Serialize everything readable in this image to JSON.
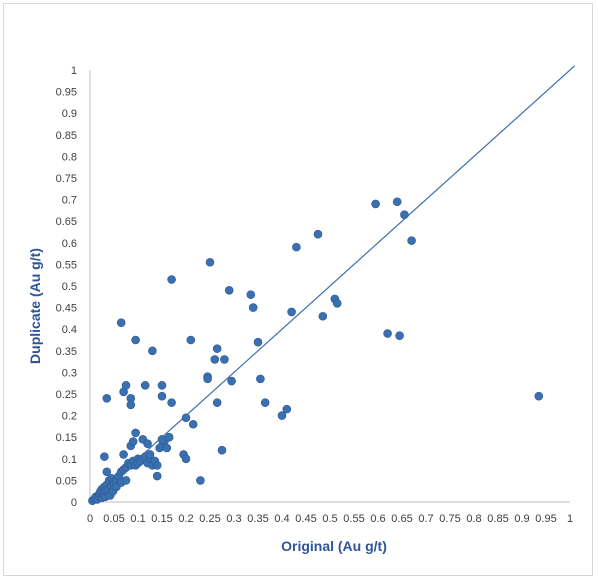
{
  "chart_data": {
    "type": "scatter",
    "title": "",
    "xlabel": "Original (Au g/t)",
    "ylabel": "Duplicate (Au g/t)",
    "xlim": [
      0,
      1
    ],
    "ylim": [
      0,
      1
    ],
    "x_ticks": [
      "0",
      "0.05",
      "0.1",
      "0.15",
      "0.2",
      "0.25",
      "0.3",
      "0.35",
      "0.4",
      "0.45",
      "0.5",
      "0.55",
      "0.6",
      "0.65",
      "0.7",
      "0.75",
      "0.8",
      "0.85",
      "0.9",
      "0.95",
      "1"
    ],
    "y_ticks": [
      "0",
      "0.05",
      "0.1",
      "0.15",
      "0.2",
      "0.25",
      "0.3",
      "0.35",
      "0.4",
      "0.45",
      "0.5",
      "0.55",
      "0.6",
      "0.65",
      "0.7",
      "0.75",
      "0.8",
      "0.85",
      "0.9",
      "0.95",
      "1"
    ],
    "grid": false,
    "legend": "none",
    "marker_color": "#3a6fb0",
    "line_color": "#3a6fb0",
    "reference_line": {
      "x": [
        0,
        1.01
      ],
      "y": [
        0,
        1.01
      ]
    },
    "points": [
      [
        0.005,
        0.003
      ],
      [
        0.01,
        0.008
      ],
      [
        0.012,
        0.012
      ],
      [
        0.015,
        0.006
      ],
      [
        0.018,
        0.015
      ],
      [
        0.02,
        0.02
      ],
      [
        0.022,
        0.025
      ],
      [
        0.025,
        0.01
      ],
      [
        0.025,
        0.03
      ],
      [
        0.028,
        0.018
      ],
      [
        0.03,
        0.035
      ],
      [
        0.03,
        0.022
      ],
      [
        0.032,
        0.012
      ],
      [
        0.035,
        0.04
      ],
      [
        0.035,
        0.028
      ],
      [
        0.038,
        0.02
      ],
      [
        0.04,
        0.05
      ],
      [
        0.04,
        0.03
      ],
      [
        0.042,
        0.015
      ],
      [
        0.045,
        0.055
      ],
      [
        0.045,
        0.035
      ],
      [
        0.048,
        0.025
      ],
      [
        0.05,
        0.045
      ],
      [
        0.05,
        0.04
      ],
      [
        0.055,
        0.05
      ],
      [
        0.055,
        0.035
      ],
      [
        0.06,
        0.06
      ],
      [
        0.065,
        0.07
      ],
      [
        0.065,
        0.045
      ],
      [
        0.07,
        0.075
      ],
      [
        0.075,
        0.08
      ],
      [
        0.075,
        0.05
      ],
      [
        0.08,
        0.09
      ],
      [
        0.085,
        0.085
      ],
      [
        0.09,
        0.095
      ],
      [
        0.095,
        0.085
      ],
      [
        0.1,
        0.1
      ],
      [
        0.1,
        0.09
      ],
      [
        0.105,
        0.095
      ],
      [
        0.11,
        0.1
      ],
      [
        0.115,
        0.105
      ],
      [
        0.12,
        0.09
      ],
      [
        0.125,
        0.1
      ],
      [
        0.13,
        0.085
      ],
      [
        0.135,
        0.095
      ],
      [
        0.14,
        0.085
      ],
      [
        0.145,
        0.125
      ],
      [
        0.15,
        0.13
      ],
      [
        0.155,
        0.14
      ],
      [
        0.16,
        0.125
      ],
      [
        0.165,
        0.15
      ],
      [
        0.03,
        0.105
      ],
      [
        0.035,
        0.07
      ],
      [
        0.07,
        0.11
      ],
      [
        0.085,
        0.13
      ],
      [
        0.09,
        0.14
      ],
      [
        0.095,
        0.16
      ],
      [
        0.11,
        0.145
      ],
      [
        0.12,
        0.135
      ],
      [
        0.125,
        0.11
      ],
      [
        0.14,
        0.06
      ],
      [
        0.15,
        0.145
      ],
      [
        0.195,
        0.11
      ],
      [
        0.2,
        0.1
      ],
      [
        0.2,
        0.195
      ],
      [
        0.215,
        0.18
      ],
      [
        0.23,
        0.05
      ],
      [
        0.275,
        0.12
      ],
      [
        0.265,
        0.23
      ],
      [
        0.035,
        0.24
      ],
      [
        0.07,
        0.255
      ],
      [
        0.075,
        0.27
      ],
      [
        0.085,
        0.24
      ],
      [
        0.085,
        0.225
      ],
      [
        0.115,
        0.27
      ],
      [
        0.15,
        0.27
      ],
      [
        0.15,
        0.245
      ],
      [
        0.17,
        0.23
      ],
      [
        0.065,
        0.415
      ],
      [
        0.095,
        0.375
      ],
      [
        0.13,
        0.35
      ],
      [
        0.17,
        0.515
      ],
      [
        0.21,
        0.375
      ],
      [
        0.245,
        0.29
      ],
      [
        0.245,
        0.285
      ],
      [
        0.25,
        0.555
      ],
      [
        0.26,
        0.33
      ],
      [
        0.265,
        0.355
      ],
      [
        0.28,
        0.33
      ],
      [
        0.29,
        0.49
      ],
      [
        0.295,
        0.28
      ],
      [
        0.335,
        0.48
      ],
      [
        0.34,
        0.45
      ],
      [
        0.35,
        0.37
      ],
      [
        0.355,
        0.285
      ],
      [
        0.365,
        0.23
      ],
      [
        0.4,
        0.2
      ],
      [
        0.41,
        0.215
      ],
      [
        0.42,
        0.44
      ],
      [
        0.43,
        0.59
      ],
      [
        0.475,
        0.62
      ],
      [
        0.485,
        0.43
      ],
      [
        0.51,
        0.47
      ],
      [
        0.515,
        0.46
      ],
      [
        0.595,
        0.69
      ],
      [
        0.62,
        0.39
      ],
      [
        0.64,
        0.695
      ],
      [
        0.645,
        0.385
      ],
      [
        0.655,
        0.665
      ],
      [
        0.67,
        0.605
      ],
      [
        0.935,
        0.245
      ]
    ]
  }
}
